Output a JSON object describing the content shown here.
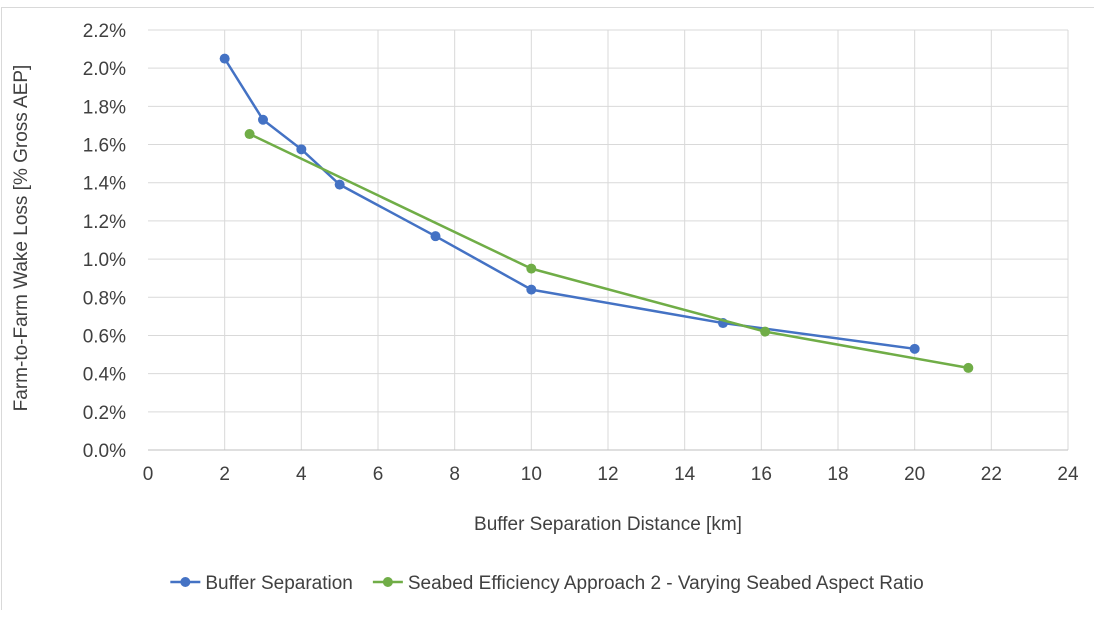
{
  "chart_data": {
    "type": "line",
    "title": "",
    "xlabel": "Buffer Separation Distance [km]",
    "ylabel": "Farm-to-Farm Wake Loss [% Gross AEP]",
    "xlim": [
      0,
      24
    ],
    "ylim": [
      0,
      2.2
    ],
    "x_ticks": [
      0,
      2,
      4,
      6,
      8,
      10,
      12,
      14,
      16,
      18,
      20,
      22,
      24
    ],
    "y_ticks": [
      0.0,
      0.2,
      0.4,
      0.6,
      0.8,
      1.0,
      1.2,
      1.4,
      1.6,
      1.8,
      2.0,
      2.2
    ],
    "x_tick_labels": [
      "0",
      "2",
      "4",
      "6",
      "8",
      "10",
      "12",
      "14",
      "16",
      "18",
      "20",
      "22",
      "24"
    ],
    "y_tick_labels": [
      "0.0%",
      "0.2%",
      "0.4%",
      "0.6%",
      "0.8%",
      "1.0%",
      "1.2%",
      "1.4%",
      "1.6%",
      "1.8%",
      "2.0%",
      "2.2%"
    ],
    "grid": true,
    "legend_position": "bottom",
    "series": [
      {
        "name": "Buffer Separation",
        "color": "#4472C4",
        "points": [
          [
            2,
            2.05
          ],
          [
            3,
            1.73
          ],
          [
            4,
            1.575
          ],
          [
            5,
            1.39
          ],
          [
            7.5,
            1.12
          ],
          [
            10,
            0.84
          ],
          [
            15,
            0.665
          ],
          [
            20,
            0.53
          ]
        ]
      },
      {
        "name": "Seabed Efficiency Approach 2 - Varying Seabed Aspect Ratio",
        "color": "#70AD47",
        "points": [
          [
            2.65,
            1.655
          ],
          [
            10,
            0.95
          ],
          [
            16.1,
            0.62
          ],
          [
            21.4,
            0.43
          ]
        ]
      }
    ]
  }
}
